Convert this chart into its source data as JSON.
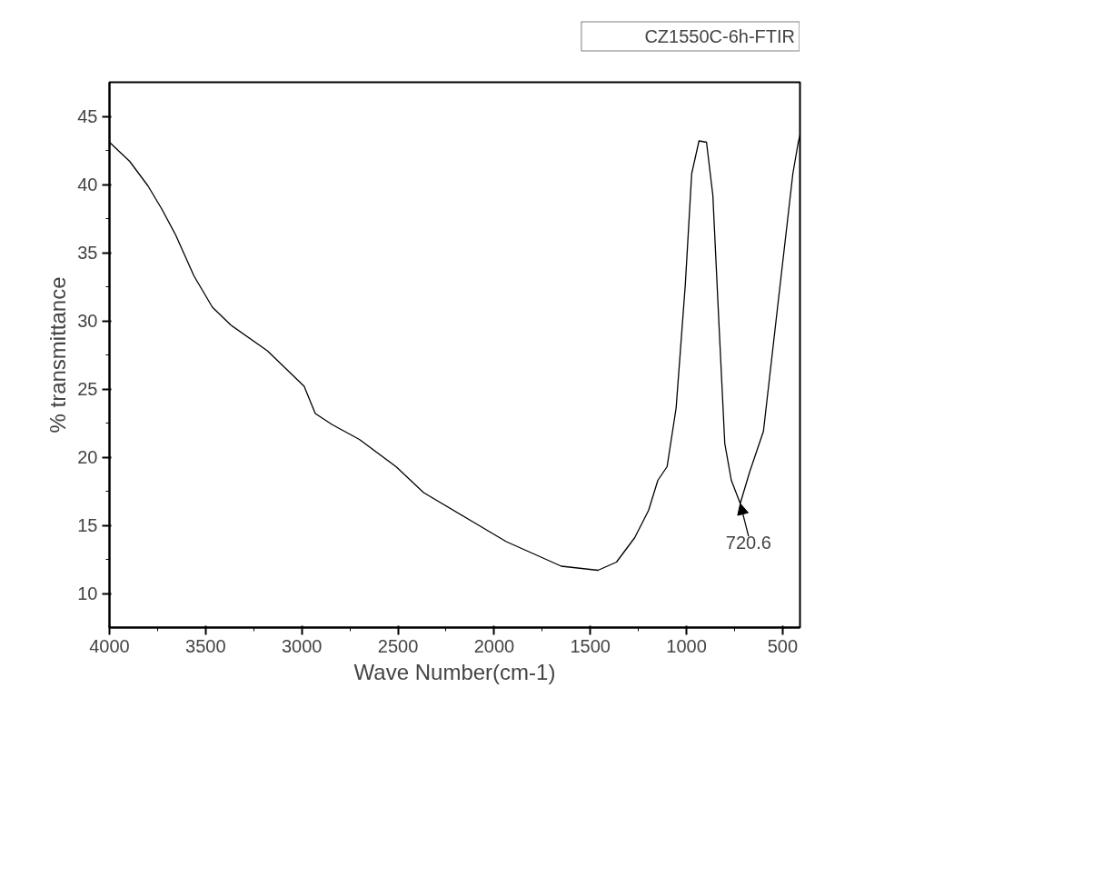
{
  "chart_data": {
    "type": "line",
    "xlabel": "Wave Number(cm-1)",
    "ylabel": "% transmittance",
    "xlim": [
      4000,
      410
    ],
    "ylim": [
      7.5,
      47.5
    ],
    "xticks": [
      4000,
      3500,
      3000,
      2500,
      2000,
      1500,
      1000,
      500
    ],
    "yticks": [
      10,
      15,
      20,
      25,
      30,
      35,
      40,
      45
    ],
    "grid": false,
    "legend": "top right",
    "marker": "none",
    "line_style": "solid",
    "annotations": [
      {
        "text": "720.6",
        "x": 720.6,
        "y": 16.6
      }
    ],
    "series": [
      {
        "name": "CZ1550C-6h-FTIR",
        "color": "#000000",
        "x": [
          4000,
          3895,
          3800,
          3728,
          3656,
          3561,
          3465,
          3370,
          3179,
          2988,
          2930,
          2844,
          2701,
          2510,
          2367,
          2128,
          1937,
          1746,
          1651,
          1460,
          1364,
          1269,
          1197,
          1149,
          1101,
          1054,
          1006,
          973,
          935,
          896,
          863,
          830,
          801,
          767,
          720.6,
          672,
          600,
          529,
          481,
          447,
          419,
          410
        ],
        "values": [
          43.1,
          41.7,
          39.9,
          38.2,
          36.3,
          33.3,
          31.0,
          29.7,
          27.8,
          25.2,
          23.2,
          22.4,
          21.3,
          19.3,
          17.4,
          15.4,
          13.8,
          12.6,
          12.0,
          11.7,
          12.3,
          14.1,
          16.1,
          18.3,
          19.3,
          23.6,
          32.7,
          40.8,
          43.2,
          43.1,
          39.2,
          29.4,
          21.0,
          18.3,
          16.6,
          18.9,
          21.9,
          30.7,
          36.6,
          40.8,
          43.1,
          43.6
        ]
      }
    ]
  }
}
